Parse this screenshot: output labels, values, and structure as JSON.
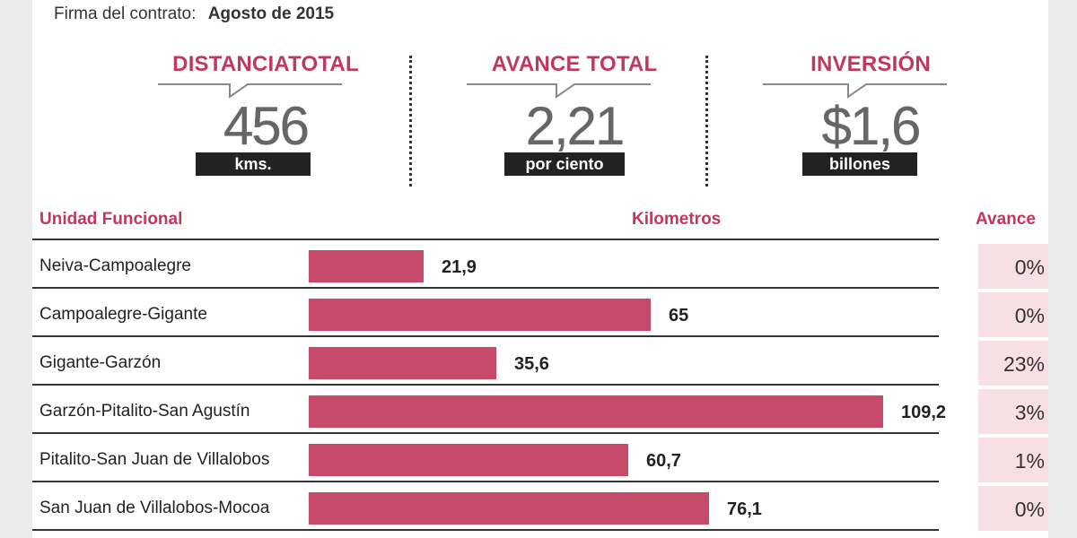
{
  "contract": {
    "label": "Firma del contrato:",
    "value": "Agosto de 2015"
  },
  "stats": [
    {
      "title": "DISTANCIATOTAL",
      "number": "456",
      "unit": "kms."
    },
    {
      "title": "AVANCE TOTAL",
      "number": "2,21",
      "unit": "por ciento"
    },
    {
      "title": "INVERSIÓN",
      "number": "$1,6",
      "unit": "billones"
    }
  ],
  "table": {
    "col_unidad": "Unidad Funcional",
    "col_km": "Kilometros",
    "col_avance": "Avance"
  },
  "colors": {
    "accent": "#c1385d",
    "bar": "#c84a6a",
    "cell_bg": "#f7dfe4"
  },
  "chart_data": {
    "type": "bar",
    "orientation": "horizontal",
    "categories": [
      "Neiva-Campoalegre",
      "Campoalegre-Gigante",
      "Gigante-Garzón",
      "Garzón-Pitalito-San Agustín",
      "Pitalito-San Juan de Villalobos",
      "San Juan de Villalobos-Mocoa"
    ],
    "values": [
      21.9,
      65,
      35.6,
      109.2,
      60.7,
      76.1
    ],
    "value_labels": [
      "21,9",
      "65",
      "35,6",
      "109,2",
      "60,7",
      "76,1"
    ],
    "avance": [
      "0%",
      "0%",
      "23%",
      "3%",
      "1%",
      "0%"
    ],
    "xlim": [
      0,
      109.2
    ]
  }
}
